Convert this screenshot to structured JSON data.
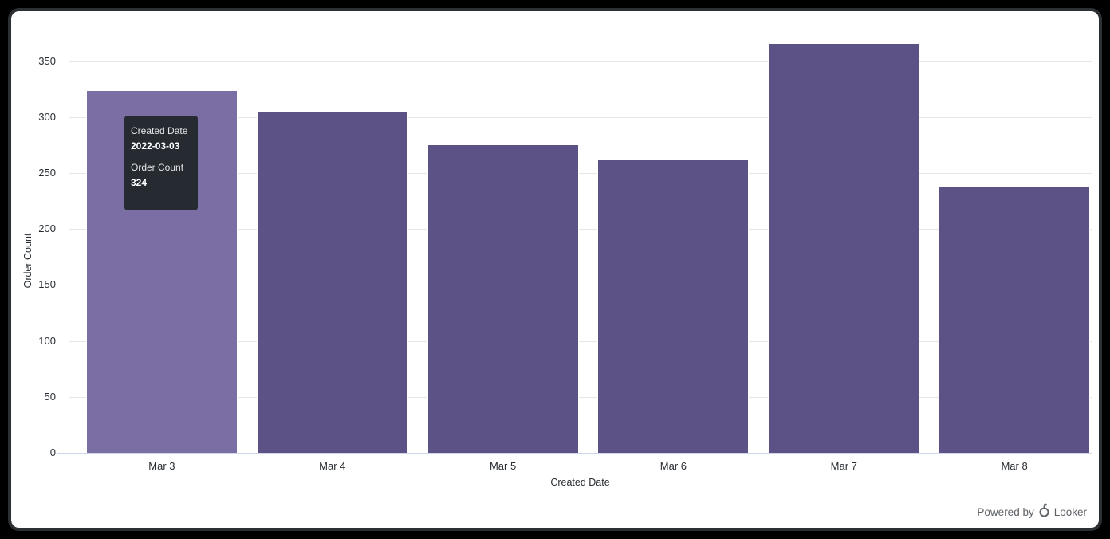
{
  "chart_data": {
    "type": "bar",
    "title": "",
    "categories": [
      "Mar 3",
      "Mar 4",
      "Mar 5",
      "Mar 6",
      "Mar 7",
      "Mar 8"
    ],
    "values": [
      324,
      306,
      276,
      262,
      366,
      239
    ],
    "xlabel": "Created Date",
    "ylabel": "Order Count",
    "ylim": [
      0,
      370
    ],
    "yticks": [
      0,
      50,
      100,
      150,
      200,
      250,
      300,
      350
    ],
    "grid": true,
    "legend_position": "none",
    "hovered_index": 0,
    "colors": {
      "bar": "#5d5286",
      "bar_hover": "#7a6ea4",
      "gridline": "#e6e6e6",
      "axis_line": "#ccd6eb",
      "tick_text": "#282d33"
    }
  },
  "tooltip": {
    "dimension_label": "Created Date",
    "dimension_value": "2022-03-03",
    "measure_label": "Order Count",
    "measure_value": "324",
    "bg": "#262b31"
  },
  "footer": {
    "powered_by": "Powered by",
    "brand": "Looker"
  }
}
